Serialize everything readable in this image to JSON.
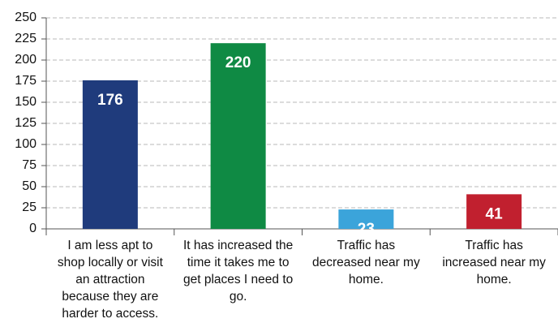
{
  "chart_data": {
    "type": "bar",
    "categories": [
      "I am less apt to shop locally or visit an attraction because they are harder to access.",
      "It has increased the time it takes me to get places I need to go.",
      "Traffic has decreased near my home.",
      "Traffic has increased near my home."
    ],
    "values": [
      176,
      220,
      23,
      41
    ],
    "colors": [
      "#1f3b7c",
      "#0f8a44",
      "#3ba4da",
      "#c1202f"
    ],
    "ylim": [
      0,
      250
    ],
    "yticks": [
      0,
      25,
      50,
      75,
      100,
      125,
      150,
      175,
      200,
      225,
      250
    ],
    "grid": true
  }
}
